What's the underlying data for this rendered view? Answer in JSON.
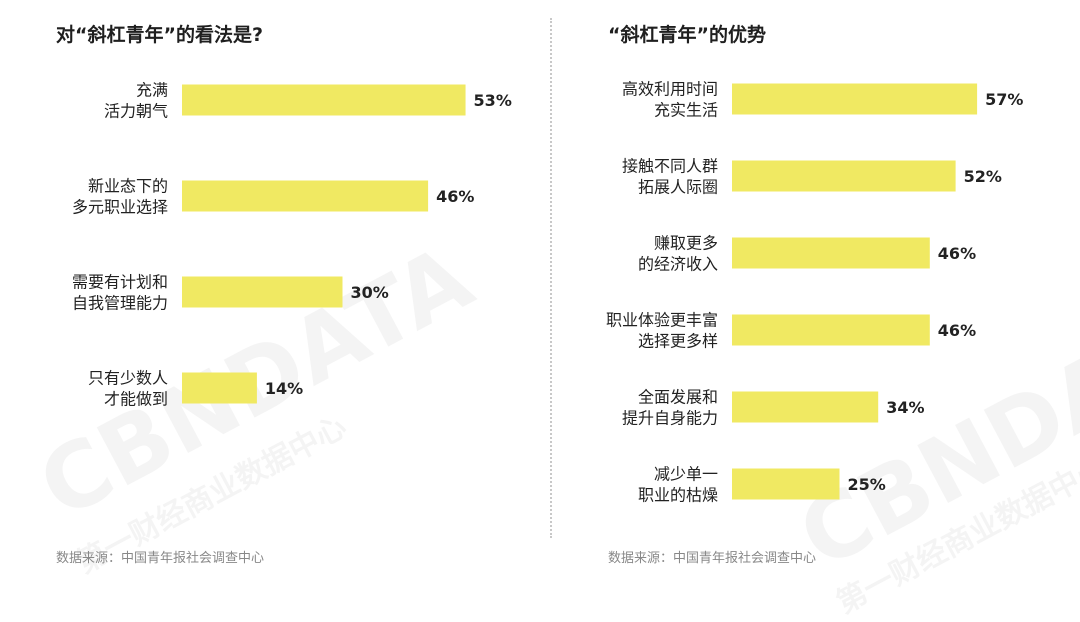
{
  "chart_data": [
    {
      "type": "bar",
      "orientation": "horizontal",
      "title": "对“斜杠青年”的看法是?",
      "categories": [
        [
          "充满",
          "活力朝气"
        ],
        [
          "新业态下的",
          "多元职业选择"
        ],
        [
          "需要有计划和",
          "自我管理能力"
        ],
        [
          "只有少数人",
          "才能做到"
        ]
      ],
      "values": [
        53,
        46,
        30,
        14
      ],
      "value_labels": [
        "53%",
        "46%",
        "30%",
        "14%"
      ],
      "unit": "%",
      "xlim": [
        0,
        100
      ],
      "source": "数据来源：中国青年报社会调查中心",
      "legend": "none",
      "grid": false
    },
    {
      "type": "bar",
      "orientation": "horizontal",
      "title": "“斜杠青年”的优势",
      "categories": [
        [
          "高效利用时间",
          "充实生活"
        ],
        [
          "接触不同人群",
          "拓展人际圈"
        ],
        [
          "赚取更多",
          "的经济收入"
        ],
        [
          "职业体验更丰富",
          "选择更多样"
        ],
        [
          "全面发展和",
          "提升自身能力"
        ],
        [
          "减少单一",
          "职业的枯燥"
        ]
      ],
      "values": [
        57,
        52,
        46,
        46,
        34,
        25
      ],
      "value_labels": [
        "57%",
        "52%",
        "46%",
        "46%",
        "34%",
        "25%"
      ],
      "unit": "%",
      "xlim": [
        0,
        100
      ],
      "source": "数据来源：中国青年报社会调查中心",
      "legend": "none",
      "grid": false
    }
  ],
  "colors": {
    "bar": "#f0e962",
    "text": "#222222",
    "source_text": "#888888"
  },
  "watermark": {
    "text_left": "CBNDATA",
    "sub_left": "第一财经商业数据中心",
    "text_right": "CBNDATA",
    "sub_right": "第一财经商业数据中心"
  }
}
